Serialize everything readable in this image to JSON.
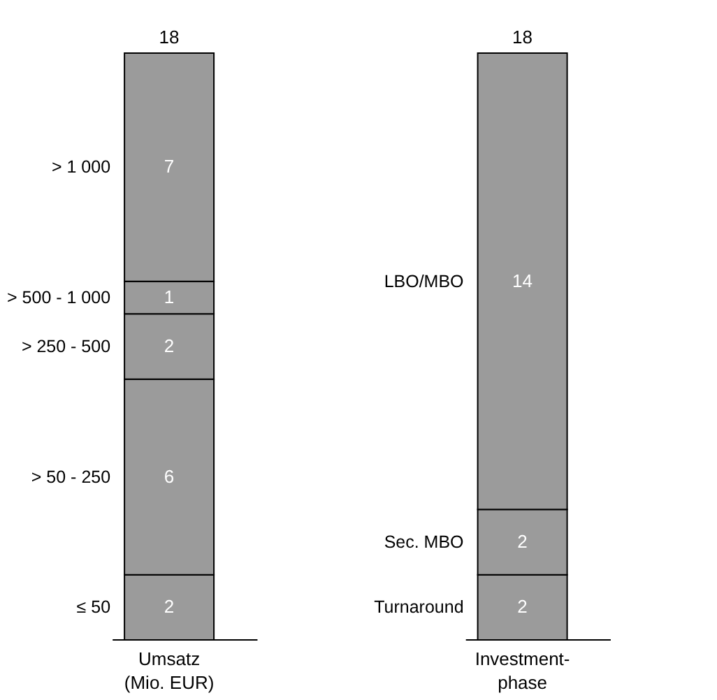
{
  "chart_data": {
    "type": "bar",
    "stacked": true,
    "data_labels": true,
    "categories": [
      "Umsatz\n(Mio. EUR)",
      "Investment-\nphase"
    ],
    "series": [
      {
        "name": "≤ 50",
        "color": "#9b9b9b",
        "values": [
          2,
          null
        ]
      },
      {
        "name": "> 50 - 250",
        "color": "#9b9b9b",
        "values": [
          6,
          null
        ]
      },
      {
        "name": "> 250 - 500",
        "color": "#9b9b9b",
        "values": [
          2,
          null
        ]
      },
      {
        "name": "> 500 - 1 000",
        "color": "#9b9b9b",
        "values": [
          1,
          null
        ]
      },
      {
        "name": "> 1 000",
        "color": "#9b9b9b",
        "values": [
          7,
          null
        ]
      },
      {
        "name": "Turnaround",
        "color": "#9b9b9b",
        "values": [
          null,
          2
        ]
      },
      {
        "name": "Sec. MBO",
        "color": "#9b9b9b",
        "values": [
          null,
          2
        ]
      },
      {
        "name": "LBO/MBO",
        "color": "#9b9b9b",
        "values": [
          null,
          14
        ]
      }
    ],
    "totals": [
      "18",
      "18"
    ]
  }
}
